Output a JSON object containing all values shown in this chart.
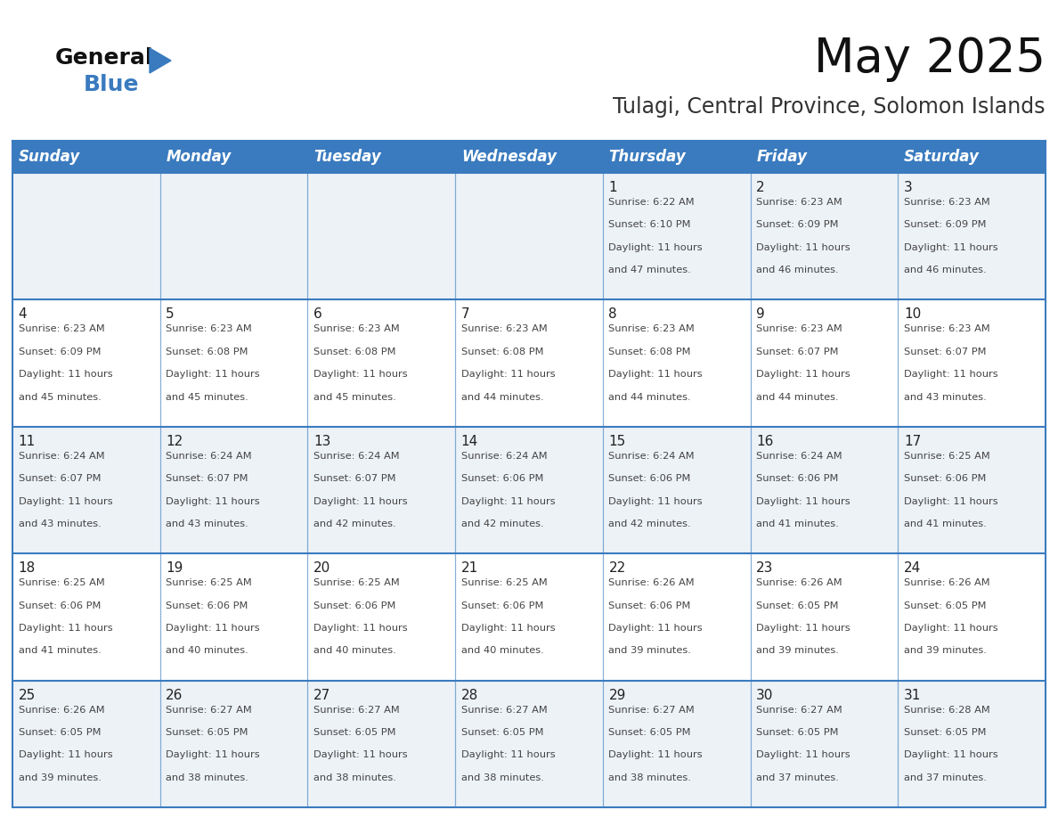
{
  "title": "May 2025",
  "subtitle": "Tulagi, Central Province, Solomon Islands",
  "days_of_week": [
    "Sunday",
    "Monday",
    "Tuesday",
    "Wednesday",
    "Thursday",
    "Friday",
    "Saturday"
  ],
  "header_bg": "#3a7bbf",
  "header_text_color": "#FFFFFF",
  "cell_bg_light": "#edf2f7",
  "cell_bg_white": "#FFFFFF",
  "border_color": "#3a7bbf",
  "row_border_color": "#3a7bbf",
  "text_color": "#444444",
  "day_num_color": "#222222",
  "calendar_data": [
    [
      null,
      null,
      null,
      null,
      {
        "day": 1,
        "sunrise": "6:22 AM",
        "sunset": "6:10 PM",
        "daylight": "11 hours and 47 minutes."
      },
      {
        "day": 2,
        "sunrise": "6:23 AM",
        "sunset": "6:09 PM",
        "daylight": "11 hours and 46 minutes."
      },
      {
        "day": 3,
        "sunrise": "6:23 AM",
        "sunset": "6:09 PM",
        "daylight": "11 hours and 46 minutes."
      }
    ],
    [
      {
        "day": 4,
        "sunrise": "6:23 AM",
        "sunset": "6:09 PM",
        "daylight": "11 hours and 45 minutes."
      },
      {
        "day": 5,
        "sunrise": "6:23 AM",
        "sunset": "6:08 PM",
        "daylight": "11 hours and 45 minutes."
      },
      {
        "day": 6,
        "sunrise": "6:23 AM",
        "sunset": "6:08 PM",
        "daylight": "11 hours and 45 minutes."
      },
      {
        "day": 7,
        "sunrise": "6:23 AM",
        "sunset": "6:08 PM",
        "daylight": "11 hours and 44 minutes."
      },
      {
        "day": 8,
        "sunrise": "6:23 AM",
        "sunset": "6:08 PM",
        "daylight": "11 hours and 44 minutes."
      },
      {
        "day": 9,
        "sunrise": "6:23 AM",
        "sunset": "6:07 PM",
        "daylight": "11 hours and 44 minutes."
      },
      {
        "day": 10,
        "sunrise": "6:23 AM",
        "sunset": "6:07 PM",
        "daylight": "11 hours and 43 minutes."
      }
    ],
    [
      {
        "day": 11,
        "sunrise": "6:24 AM",
        "sunset": "6:07 PM",
        "daylight": "11 hours and 43 minutes."
      },
      {
        "day": 12,
        "sunrise": "6:24 AM",
        "sunset": "6:07 PM",
        "daylight": "11 hours and 43 minutes."
      },
      {
        "day": 13,
        "sunrise": "6:24 AM",
        "sunset": "6:07 PM",
        "daylight": "11 hours and 42 minutes."
      },
      {
        "day": 14,
        "sunrise": "6:24 AM",
        "sunset": "6:06 PM",
        "daylight": "11 hours and 42 minutes."
      },
      {
        "day": 15,
        "sunrise": "6:24 AM",
        "sunset": "6:06 PM",
        "daylight": "11 hours and 42 minutes."
      },
      {
        "day": 16,
        "sunrise": "6:24 AM",
        "sunset": "6:06 PM",
        "daylight": "11 hours and 41 minutes."
      },
      {
        "day": 17,
        "sunrise": "6:25 AM",
        "sunset": "6:06 PM",
        "daylight": "11 hours and 41 minutes."
      }
    ],
    [
      {
        "day": 18,
        "sunrise": "6:25 AM",
        "sunset": "6:06 PM",
        "daylight": "11 hours and 41 minutes."
      },
      {
        "day": 19,
        "sunrise": "6:25 AM",
        "sunset": "6:06 PM",
        "daylight": "11 hours and 40 minutes."
      },
      {
        "day": 20,
        "sunrise": "6:25 AM",
        "sunset": "6:06 PM",
        "daylight": "11 hours and 40 minutes."
      },
      {
        "day": 21,
        "sunrise": "6:25 AM",
        "sunset": "6:06 PM",
        "daylight": "11 hours and 40 minutes."
      },
      {
        "day": 22,
        "sunrise": "6:26 AM",
        "sunset": "6:06 PM",
        "daylight": "11 hours and 39 minutes."
      },
      {
        "day": 23,
        "sunrise": "6:26 AM",
        "sunset": "6:05 PM",
        "daylight": "11 hours and 39 minutes."
      },
      {
        "day": 24,
        "sunrise": "6:26 AM",
        "sunset": "6:05 PM",
        "daylight": "11 hours and 39 minutes."
      }
    ],
    [
      {
        "day": 25,
        "sunrise": "6:26 AM",
        "sunset": "6:05 PM",
        "daylight": "11 hours and 39 minutes."
      },
      {
        "day": 26,
        "sunrise": "6:27 AM",
        "sunset": "6:05 PM",
        "daylight": "11 hours and 38 minutes."
      },
      {
        "day": 27,
        "sunrise": "6:27 AM",
        "sunset": "6:05 PM",
        "daylight": "11 hours and 38 minutes."
      },
      {
        "day": 28,
        "sunrise": "6:27 AM",
        "sunset": "6:05 PM",
        "daylight": "11 hours and 38 minutes."
      },
      {
        "day": 29,
        "sunrise": "6:27 AM",
        "sunset": "6:05 PM",
        "daylight": "11 hours and 38 minutes."
      },
      {
        "day": 30,
        "sunrise": "6:27 AM",
        "sunset": "6:05 PM",
        "daylight": "11 hours and 37 minutes."
      },
      {
        "day": 31,
        "sunrise": "6:28 AM",
        "sunset": "6:05 PM",
        "daylight": "11 hours and 37 minutes."
      }
    ]
  ],
  "logo_text_general": "General",
  "logo_text_blue": "Blue",
  "logo_triangle_color": "#3a7bbf",
  "title_fontsize": 38,
  "subtitle_fontsize": 17,
  "header_fontsize": 12,
  "day_num_fontsize": 11,
  "cell_text_fontsize": 8.2
}
